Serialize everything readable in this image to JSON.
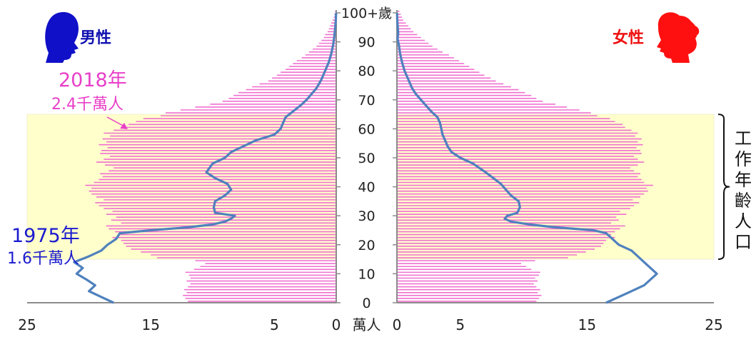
{
  "labels": {
    "male": "男性",
    "female": "女性",
    "series_2018_year": "2018年",
    "series_2018_pop": "2.4千萬人",
    "series_1975_year": "1975年",
    "series_1975_pop": "1.6千萬人",
    "working_age": "工作年齡人口",
    "unit": "萬人"
  },
  "colors": {
    "bar_2018": "#f070d0",
    "line_1975": "#4f81bd",
    "working_band": "#ffffcc",
    "male_icon": "#1010c8",
    "female_icon": "#ff1010"
  },
  "icons": {
    "male": "male-head-silhouette-icon",
    "female": "female-head-silhouette-icon"
  },
  "chart_data": {
    "type": "population-pyramid",
    "x_ticks_left": [
      25,
      15,
      5,
      0
    ],
    "x_ticks_right": [
      0,
      5,
      15,
      25
    ],
    "xlim": [
      0,
      25
    ],
    "age_ticks": [
      "0",
      "10",
      "20",
      "30",
      "40",
      "50",
      "60",
      "70",
      "80",
      "90",
      "100+歲"
    ],
    "age_range": [
      0,
      100
    ],
    "working_age_band": [
      15,
      64
    ],
    "series": [
      {
        "name": "2018年",
        "kind": "bars",
        "male": [
          12.0,
          12.2,
          12.4,
          12.1,
          12.3,
          12.0,
          11.8,
          12.1,
          11.8,
          11.9,
          12.2,
          11.5,
          11.0,
          10.6,
          11.4,
          14.5,
          15.0,
          15.8,
          16.6,
          17.0,
          17.2,
          17.4,
          18.1,
          17.5,
          17.9,
          18.4,
          18.6,
          17.4,
          18.2,
          17.8,
          18.6,
          18.1,
          18.8,
          19.2,
          19.5,
          18.8,
          19.4,
          19.8,
          20.0,
          19.8,
          20.3,
          19.6,
          19.2,
          18.9,
          19.1,
          18.4,
          18.0,
          18.7,
          19.4,
          18.8,
          18.3,
          19.1,
          19.0,
          18.5,
          19.2,
          18.6,
          18.9,
          18.3,
          18.8,
          18.0,
          17.3,
          16.8,
          16.2,
          15.6,
          14.2,
          13.8,
          12.6,
          11.4,
          10.2,
          9.2,
          8.7,
          8.3,
          7.9,
          7.3,
          6.8,
          6.2,
          5.5,
          5.2,
          4.8,
          4.5,
          4.1,
          3.8,
          3.5,
          3.2,
          2.8,
          2.5,
          2.2,
          1.9,
          1.6,
          1.4,
          1.2,
          1.0,
          0.9,
          0.7,
          0.6,
          0.5,
          0.4,
          0.3,
          0.2,
          0.15,
          0.1
        ],
        "female": [
          11.0,
          11.2,
          11.4,
          11.1,
          11.3,
          11.0,
          10.8,
          11.1,
          10.9,
          11.2,
          11.3,
          10.6,
          10.2,
          9.8,
          10.9,
          13.5,
          14.2,
          14.9,
          15.6,
          16.1,
          16.3,
          16.5,
          17.2,
          16.9,
          17.2,
          17.6,
          18.0,
          16.9,
          17.5,
          17.3,
          18.1,
          17.6,
          18.4,
          18.7,
          19.1,
          18.6,
          19.2,
          19.5,
          19.8,
          19.7,
          20.2,
          19.5,
          19.3,
          19.0,
          19.2,
          18.7,
          18.4,
          19.0,
          19.5,
          19.0,
          18.7,
          19.3,
          19.2,
          18.9,
          19.4,
          19.0,
          19.3,
          18.8,
          19.0,
          18.5,
          18.0,
          17.8,
          17.2,
          16.8,
          15.8,
          15.3,
          14.4,
          13.4,
          12.5,
          11.5,
          11.0,
          10.6,
          10.1,
          9.6,
          9.0,
          8.4,
          7.8,
          7.4,
          6.9,
          6.5,
          6.1,
          5.7,
          5.3,
          4.9,
          4.5,
          4.1,
          3.6,
          3.2,
          2.8,
          2.5,
          2.2,
          1.9,
          1.6,
          1.3,
          1.1,
          0.9,
          0.7,
          0.5,
          0.4,
          0.3,
          0.2
        ]
      },
      {
        "name": "1975年",
        "kind": "line",
        "male_points": [
          [
            18.0,
            0
          ],
          [
            19.0,
            2
          ],
          [
            20.0,
            4
          ],
          [
            19.5,
            6
          ],
          [
            20.2,
            8
          ],
          [
            21.0,
            10
          ],
          [
            20.5,
            12
          ],
          [
            21.2,
            14
          ],
          [
            20.0,
            16
          ],
          [
            19.0,
            18
          ],
          [
            18.5,
            20
          ],
          [
            17.8,
            22
          ],
          [
            17.5,
            24
          ],
          [
            15.0,
            25
          ],
          [
            12.0,
            26
          ],
          [
            10.0,
            27
          ],
          [
            9.0,
            28
          ],
          [
            8.5,
            29
          ],
          [
            8.2,
            30
          ],
          [
            9.8,
            31
          ],
          [
            9.9,
            33
          ],
          [
            9.8,
            35
          ],
          [
            9.0,
            37
          ],
          [
            8.5,
            39
          ],
          [
            8.8,
            41
          ],
          [
            9.8,
            43
          ],
          [
            10.5,
            45
          ],
          [
            10.0,
            48
          ],
          [
            9.0,
            50
          ],
          [
            8.5,
            52
          ],
          [
            7.5,
            54
          ],
          [
            6.5,
            56
          ],
          [
            5.0,
            58
          ],
          [
            4.5,
            60
          ],
          [
            4.3,
            62
          ],
          [
            4.1,
            64
          ],
          [
            3.5,
            66
          ],
          [
            2.9,
            68
          ],
          [
            2.4,
            70
          ],
          [
            2.0,
            72
          ],
          [
            1.6,
            74
          ],
          [
            1.2,
            77
          ],
          [
            0.9,
            80
          ],
          [
            0.6,
            83
          ],
          [
            0.4,
            86
          ],
          [
            0.25,
            89
          ],
          [
            0.15,
            92
          ],
          [
            0.08,
            95
          ],
          [
            0.03,
            98
          ],
          [
            0.01,
            100
          ]
        ],
        "female_points": [
          [
            16.5,
            0
          ],
          [
            17.5,
            2
          ],
          [
            18.5,
            4
          ],
          [
            19.5,
            6
          ],
          [
            20.0,
            8
          ],
          [
            20.5,
            10
          ],
          [
            20.0,
            12
          ],
          [
            19.5,
            14
          ],
          [
            19.0,
            16
          ],
          [
            18.5,
            18
          ],
          [
            17.5,
            20
          ],
          [
            17.0,
            22
          ],
          [
            16.5,
            24
          ],
          [
            15.5,
            25
          ],
          [
            12.5,
            26
          ],
          [
            10.5,
            27
          ],
          [
            9.0,
            28
          ],
          [
            8.5,
            29
          ],
          [
            8.7,
            30
          ],
          [
            9.5,
            31
          ],
          [
            9.7,
            33
          ],
          [
            9.6,
            35
          ],
          [
            9.0,
            37
          ],
          [
            8.6,
            39
          ],
          [
            8.2,
            41
          ],
          [
            7.6,
            43
          ],
          [
            7.0,
            45
          ],
          [
            6.0,
            48
          ],
          [
            5.0,
            50
          ],
          [
            4.3,
            52
          ],
          [
            4.0,
            54
          ],
          [
            3.8,
            56
          ],
          [
            3.6,
            58
          ],
          [
            3.5,
            60
          ],
          [
            3.4,
            62
          ],
          [
            3.2,
            64
          ],
          [
            2.7,
            66
          ],
          [
            2.3,
            68
          ],
          [
            1.9,
            70
          ],
          [
            1.5,
            72
          ],
          [
            1.2,
            74
          ],
          [
            0.9,
            77
          ],
          [
            0.6,
            80
          ],
          [
            0.4,
            83
          ],
          [
            0.25,
            86
          ],
          [
            0.15,
            89
          ],
          [
            0.05,
            91
          ],
          [
            0.1,
            93
          ],
          [
            0.05,
            96
          ],
          [
            0.02,
            98
          ],
          [
            0.01,
            100
          ]
        ]
      }
    ]
  }
}
